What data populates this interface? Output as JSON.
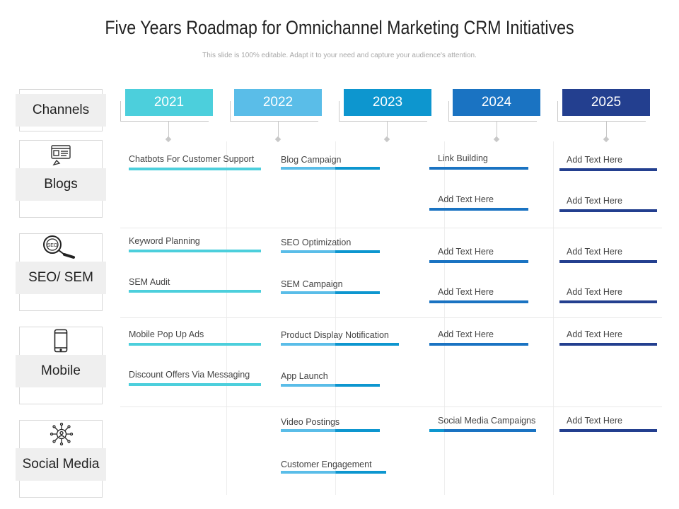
{
  "header": {
    "title": "Five Years Roadmap for Omnichannel Marketing CRM Initiatives",
    "subtitle": "This slide is 100% editable. Adapt it to your need and capture your audience's attention."
  },
  "colors": {
    "y2021": "#4ccfdc",
    "y2022": "#5abde8",
    "y2023": "#0d96cf",
    "y2024": "#1a73c2",
    "y2025": "#233f8f"
  },
  "years": [
    "2021",
    "2022",
    "2023",
    "2024",
    "2025"
  ],
  "channels_label": "Channels",
  "rows": [
    {
      "label": "Blogs",
      "icon": "blog-icon"
    },
    {
      "label": "SEO/ SEM",
      "icon": "seo-magnifier-icon"
    },
    {
      "label": "Mobile",
      "icon": "mobile-phone-icon"
    },
    {
      "label": "Social Media",
      "icon": "social-network-icon"
    }
  ],
  "tasks": [
    {
      "text": "Chatbots For Customer Support"
    },
    {
      "text": "Blog Campaign"
    },
    {
      "text": "Link Building"
    },
    {
      "text": "Add Text Here"
    },
    {
      "text": "Add Text Here"
    },
    {
      "text": "Add Text Here"
    },
    {
      "text": "Keyword Planning"
    },
    {
      "text": "SEO Optimization"
    },
    {
      "text": "Add Text Here"
    },
    {
      "text": "Add Text Here"
    },
    {
      "text": "SEM Audit"
    },
    {
      "text": "SEM Campaign"
    },
    {
      "text": "Add Text Here"
    },
    {
      "text": "Add Text Here"
    },
    {
      "text": "Mobile Pop Up Ads"
    },
    {
      "text": "Product Display Notification"
    },
    {
      "text": "Add Text Here"
    },
    {
      "text": "Add Text Here"
    },
    {
      "text": "Discount Offers Via Messaging"
    },
    {
      "text": "App Launch"
    },
    {
      "text": "Video Postings"
    },
    {
      "text": "Social Media Campaigns"
    },
    {
      "text": "Add Text Here"
    },
    {
      "text": "Customer Engagement"
    }
  ]
}
